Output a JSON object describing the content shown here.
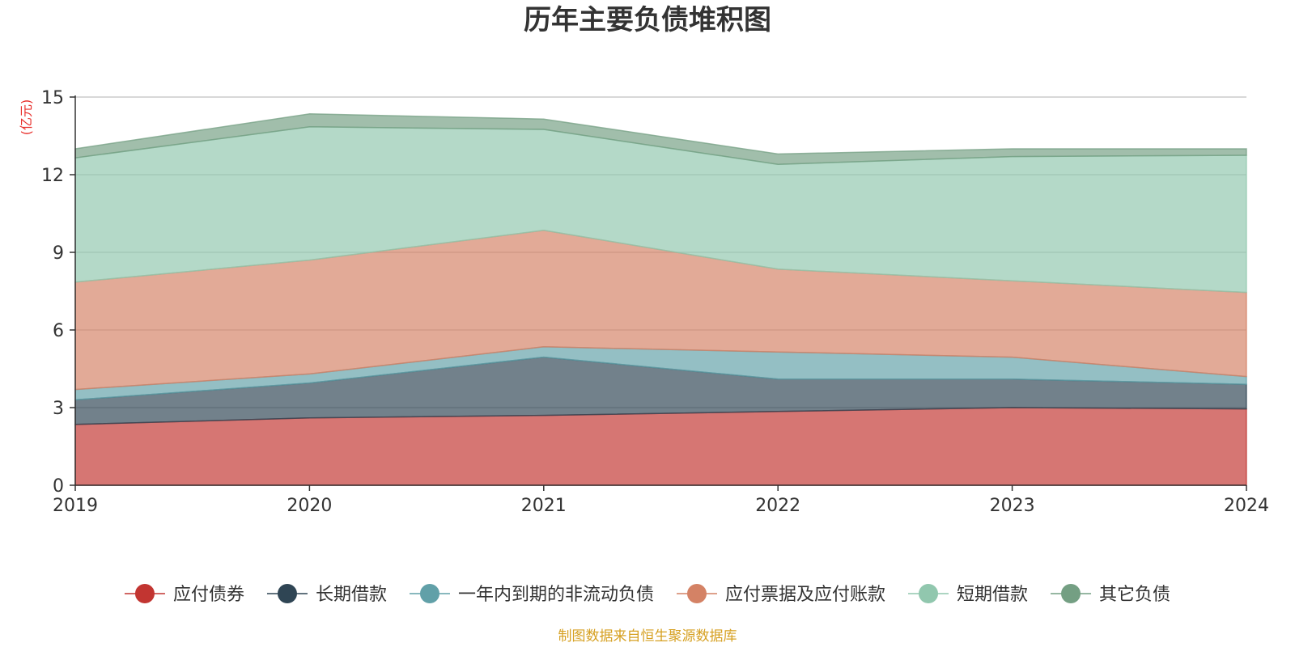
{
  "chart_data": {
    "type": "area",
    "stacked": true,
    "title": "历年主要负债堆积图",
    "ylabel": "(亿元)",
    "xlabel": "",
    "x": [
      "2019",
      "2020",
      "2021",
      "2022",
      "2023",
      "2024"
    ],
    "ylim": [
      0,
      15
    ],
    "yticks": [
      "0",
      "3",
      "6",
      "9",
      "12",
      "15"
    ],
    "grid": true,
    "legend_position": "bottom",
    "series": [
      {
        "name": "应付债券",
        "color": "#c23531",
        "values": [
          2.35,
          2.6,
          2.7,
          2.85,
          3.0,
          2.95
        ]
      },
      {
        "name": "长期借款",
        "color": "#2f4554",
        "values": [
          0.95,
          1.35,
          2.25,
          1.25,
          1.1,
          0.95
        ]
      },
      {
        "name": "一年内到期的非流动负债",
        "color": "#61a0a8",
        "values": [
          0.4,
          0.35,
          0.4,
          1.05,
          0.85,
          0.3
        ]
      },
      {
        "name": "应付票据及应付账款",
        "color": "#d48265",
        "values": [
          4.15,
          4.4,
          4.5,
          3.2,
          2.95,
          3.25
        ]
      },
      {
        "name": "短期借款",
        "color": "#91c7ae",
        "values": [
          4.8,
          5.15,
          3.9,
          4.05,
          4.8,
          5.3
        ]
      },
      {
        "name": "其它负债",
        "color": "#749f83",
        "values": [
          0.35,
          0.5,
          0.4,
          0.4,
          0.3,
          0.25
        ]
      }
    ]
  },
  "source_note": "制图数据来自恒生聚源数据库"
}
